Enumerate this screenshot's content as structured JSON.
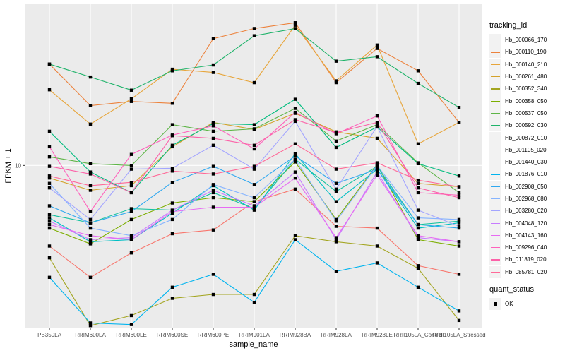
{
  "chart_data": {
    "type": "line",
    "title": "",
    "xlabel": "sample_name",
    "ylabel": "FPKM + 1",
    "yscale": "log10",
    "yticks": [
      10
    ],
    "ytick_labels": [
      "10"
    ],
    "ylim": [
      1.65,
      60
    ],
    "grid": true,
    "legend_position": "right",
    "categories": [
      "PB350LA",
      "RRIM600LA",
      "RRIM600LE",
      "RRIM600SE",
      "RRIM600PE",
      "RRIM901LA",
      "RRIM928BA",
      "RRIM928LA",
      "RRIM928LE",
      "RRII105LA_Control",
      "RRII105LA_Stressed"
    ],
    "legend_title": "tracking_id",
    "legend2_title": "quant_status",
    "legend2_items": [
      "OK"
    ],
    "series": [
      {
        "name": "Hb_000066_170",
        "color": "#F8766D",
        "values": [
          4.1,
          2.9,
          3.8,
          4.7,
          4.9,
          6.7,
          7.7,
          5.1,
          5.0,
          3.3,
          3.0
        ]
      },
      {
        "name": "Hb_000110_190",
        "color": "#EC823C",
        "values": [
          30.7,
          19.4,
          20.3,
          19.9,
          40.7,
          45.5,
          48.5,
          25.0,
          36.5,
          28.5,
          16.1
        ]
      },
      {
        "name": "Hb_000140_210",
        "color": "#E7A53A",
        "values": [
          23.1,
          15.8,
          20.9,
          29.0,
          28.0,
          25.0,
          47.2,
          25.5,
          37.9,
          12.7,
          16.1
        ]
      },
      {
        "name": "Hb_000261_480",
        "color": "#D4A22A",
        "values": [
          8.7,
          7.6,
          8.0,
          12.3,
          16.1,
          14.9,
          17.8,
          14.5,
          13.5,
          8.2,
          7.9
        ]
      },
      {
        "name": "Hb_000352_340",
        "color": "#A3A520",
        "values": [
          3.6,
          1.7,
          1.9,
          2.3,
          2.4,
          2.4,
          4.6,
          4.3,
          4.1,
          3.2,
          1.8
        ]
      },
      {
        "name": "Hb_000358_050",
        "color": "#7CAE00",
        "values": [
          5.0,
          4.2,
          5.5,
          6.6,
          7.0,
          6.7,
          10.4,
          5.5,
          10.1,
          4.4,
          4.1
        ]
      },
      {
        "name": "Hb_000537_050",
        "color": "#5EB547",
        "values": [
          11.0,
          10.2,
          10.0,
          15.7,
          14.6,
          15.0,
          18.8,
          13.1,
          15.7,
          10.3,
          7.4
        ]
      },
      {
        "name": "Hb_000592_030",
        "color": "#1FB36A",
        "values": [
          30.7,
          26.6,
          23.0,
          28.5,
          30.4,
          42.0,
          45.5,
          31.7,
          33.3,
          24.8,
          19.0
        ]
      },
      {
        "name": "Hb_000872_010",
        "color": "#00BC7E",
        "values": [
          14.6,
          9.3,
          7.4,
          12.5,
          15.9,
          15.7,
          20.8,
          12.2,
          15.3,
          10.2,
          8.9
        ]
      },
      {
        "name": "Hb_001105_020",
        "color": "#14C2A0",
        "values": [
          5.8,
          5.3,
          6.2,
          6.1,
          7.4,
          6.2,
          10.7,
          7.5,
          9.9,
          5.2,
          5.4
        ]
      },
      {
        "name": "Hb_001440_030",
        "color": "#00BFC4",
        "values": [
          5.6,
          4.3,
          4.4,
          5.9,
          8.0,
          6.1,
          11.4,
          6.7,
          9.6,
          5.0,
          5.3
        ]
      },
      {
        "name": "Hb_001876_010",
        "color": "#00B4EF",
        "values": [
          2.9,
          1.75,
          1.72,
          2.6,
          3.0,
          2.2,
          4.4,
          3.1,
          3.4,
          2.6,
          2.0
        ]
      },
      {
        "name": "Hb_002908_050",
        "color": "#2FA8F0",
        "values": [
          6.4,
          5.3,
          6.0,
          8.3,
          9.9,
          8.1,
          11.1,
          8.2,
          9.6,
          5.2,
          5.0
        ]
      },
      {
        "name": "Hb_002968_080",
        "color": "#86B4FF",
        "values": [
          8.2,
          5.0,
          4.6,
          5.5,
          8.1,
          7.0,
          10.7,
          5.4,
          10.0,
          5.6,
          5.5
        ]
      },
      {
        "name": "Hb_003280_020",
        "color": "#A3A5FF",
        "values": [
          7.8,
          5.5,
          9.6,
          9.7,
          12.5,
          9.6,
          16.3,
          7.7,
          15.4,
          6.1,
          5.1
        ]
      },
      {
        "name": "Hb_004048_120",
        "color": "#C77CFF",
        "values": [
          5.4,
          4.4,
          4.5,
          6.1,
          7.6,
          6.4,
          9.3,
          4.4,
          9.3,
          4.5,
          4.3
        ]
      },
      {
        "name": "Hb_004143_160",
        "color": "#E76BF3",
        "values": [
          5.2,
          4.6,
          4.4,
          6.0,
          6.3,
          6.3,
          8.7,
          4.5,
          9.0,
          4.6,
          4.3
        ]
      },
      {
        "name": "Hb_009296_040",
        "color": "#FF62BC",
        "values": [
          12.3,
          6.0,
          11.3,
          14.0,
          15.5,
          12.0,
          18.0,
          14.2,
          17.3,
          7.4,
          7.2
        ]
      },
      {
        "name": "Hb_011819_020",
        "color": "#FC61A8",
        "values": [
          9.9,
          9.1,
          7.4,
          13.9,
          13.5,
          12.5,
          16.6,
          14.4,
          16.1,
          7.8,
          7.0
        ]
      },
      {
        "name": "Hb_085781_020",
        "color": "#FF6A98",
        "values": [
          8.9,
          8.0,
          8.3,
          9.4,
          9.1,
          9.9,
          12.7,
          9.6,
          10.3,
          8.5,
          7.9
        ]
      }
    ]
  }
}
